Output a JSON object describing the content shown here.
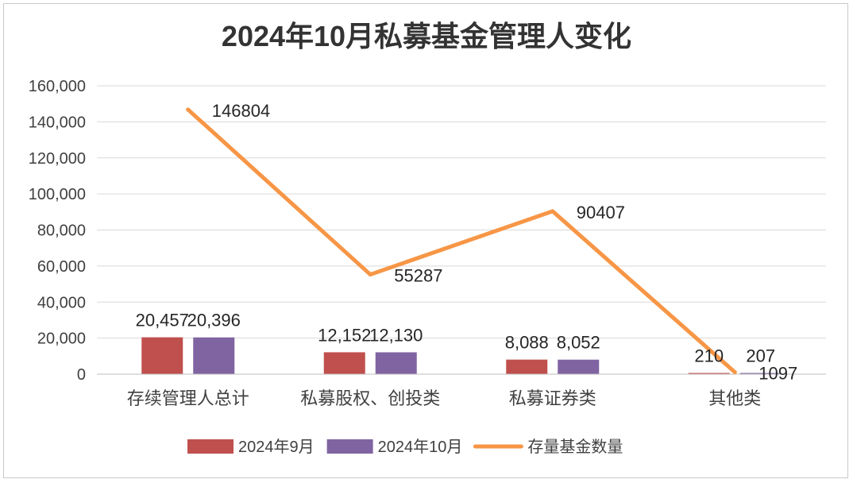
{
  "chart_data": {
    "type": "bar+line",
    "title": "2024年10月私募基金管理人变化",
    "categories": [
      "存续管理人总计",
      "私募股权、创投类",
      "私募证券类",
      "其他类"
    ],
    "series": [
      {
        "name": "2024年9月",
        "kind": "bar",
        "color": "#c0504d",
        "values": [
          20457,
          12152,
          8088,
          210
        ],
        "labels": [
          "20,457",
          "12,152",
          "8,088",
          "210"
        ]
      },
      {
        "name": "2024年10月",
        "kind": "bar",
        "color": "#8064a2",
        "values": [
          20396,
          12130,
          8052,
          207
        ],
        "labels": [
          "20,396",
          "12,130",
          "8,052",
          "207"
        ]
      },
      {
        "name": "存量基金数量",
        "kind": "line",
        "color": "#f79646",
        "values": [
          146804,
          55287,
          90407,
          1097
        ],
        "labels": [
          "146804",
          "55287",
          "90407",
          "1097"
        ]
      }
    ],
    "ylim": [
      0,
      160000
    ],
    "yticks": [
      0,
      20000,
      40000,
      60000,
      80000,
      100000,
      120000,
      140000,
      160000
    ],
    "ytick_labels": [
      "0",
      "20,000",
      "40,000",
      "60,000",
      "80,000",
      "100,000",
      "120,000",
      "140,000",
      "160,000"
    ],
    "grid": true,
    "legend": "bottom"
  }
}
